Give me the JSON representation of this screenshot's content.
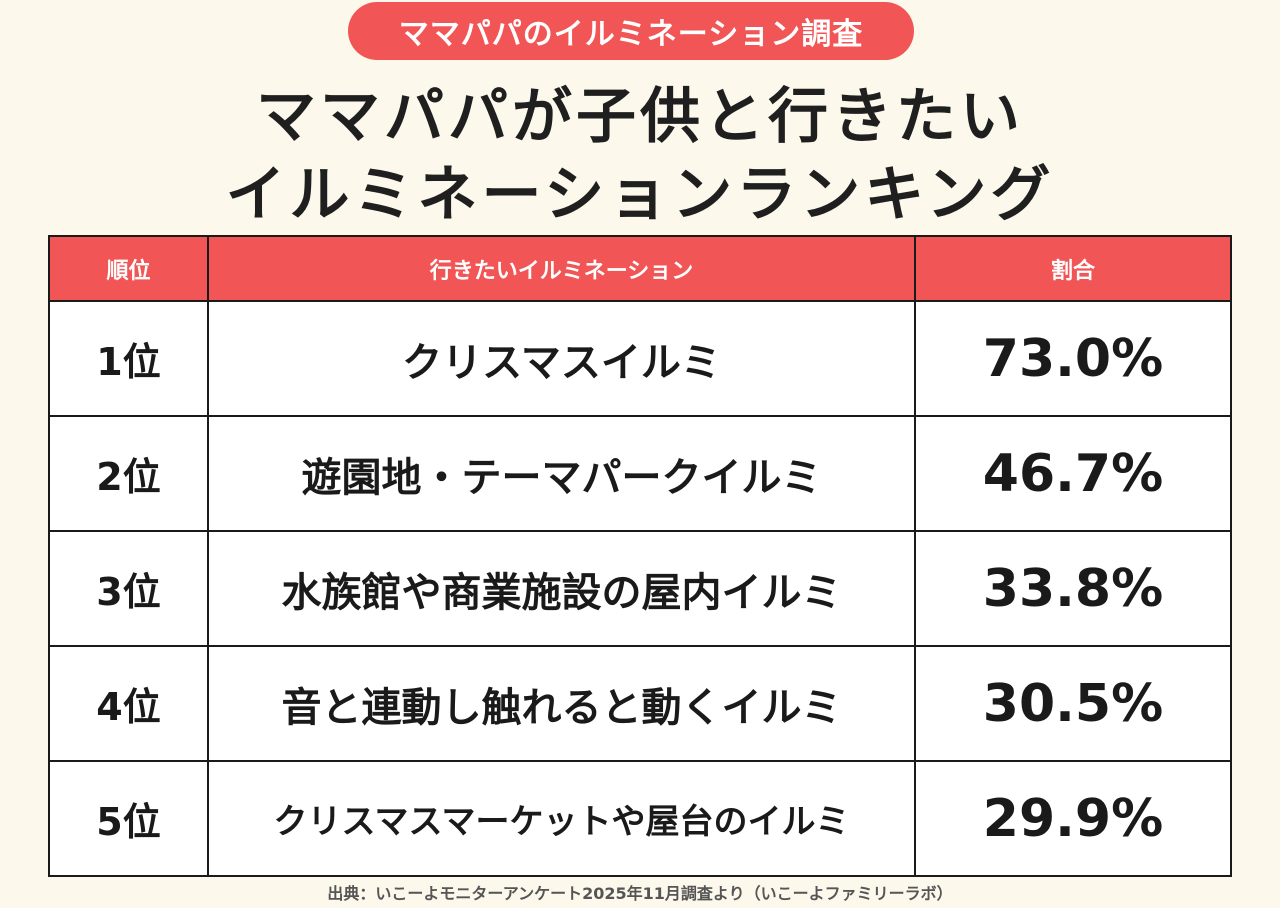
{
  "badge": "ママパパのイルミネーション調査",
  "title": {
    "line1": "ママパパが子供と行きたい",
    "line2": "イルミネーションランキング"
  },
  "colors": {
    "accent": "#f25555",
    "background": "#fdf8ec"
  },
  "chart_data": {
    "type": "table",
    "columns": [
      "順位",
      "行きたいイルミネーション",
      "割合"
    ],
    "rows": [
      {
        "rank": "1位",
        "name": "クリスマスイルミ",
        "share": "73.0%"
      },
      {
        "rank": "2位",
        "name": "遊園地・テーマパークイルミ",
        "share": "46.7%"
      },
      {
        "rank": "3位",
        "name": "水族館や商業施設の屋内イルミ",
        "share": "33.8%"
      },
      {
        "rank": "4位",
        "name": "音と連動し触れると動くイルミ",
        "share": "30.5%"
      },
      {
        "rank": "5位",
        "name": "クリスマスマーケットや屋台のイルミ",
        "share": "29.9%"
      }
    ]
  },
  "source": "出典：いこーよモニターアンケート2025年11月調査より（いこーよファミリーラボ）"
}
